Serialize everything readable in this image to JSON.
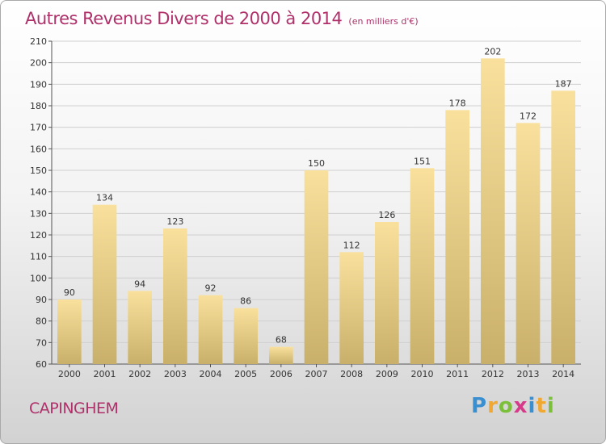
{
  "header": {
    "title": "Autres Revenus Divers de 2000 à 2014",
    "unit": "(en milliers d'€)"
  },
  "footer": {
    "commune": "CAPINGHEM"
  },
  "brand": {
    "letters": [
      "P",
      "r",
      "o",
      "x",
      "i",
      "t",
      "i"
    ],
    "colors": [
      "#3a8fd0",
      "#f0a830",
      "#7bbf3a",
      "#d83a8a",
      "#3a8fd0",
      "#f0a830",
      "#7bbf3a"
    ]
  },
  "colors": {
    "bar_top": "#f9e19d",
    "bar_bottom": "#c9b06a",
    "title": "#b0306a",
    "grid": "#cfcfcf"
  },
  "chart_data": {
    "type": "bar",
    "title": "Autres Revenus Divers de 2000 à 2014",
    "subtitle": "(en milliers d'€)",
    "xlabel": "",
    "ylabel": "",
    "categories": [
      "2000",
      "2001",
      "2002",
      "2003",
      "2004",
      "2005",
      "2006",
      "2007",
      "2008",
      "2009",
      "2010",
      "2011",
      "2012",
      "2013",
      "2014"
    ],
    "values": [
      90,
      134,
      94,
      123,
      92,
      86,
      68,
      150,
      112,
      126,
      151,
      178,
      202,
      172,
      187
    ],
    "ylim": [
      60,
      210
    ],
    "yticks": [
      60,
      70,
      80,
      90,
      100,
      110,
      120,
      130,
      140,
      150,
      160,
      170,
      180,
      190,
      200,
      210
    ],
    "grid": true,
    "data_labels": true
  }
}
